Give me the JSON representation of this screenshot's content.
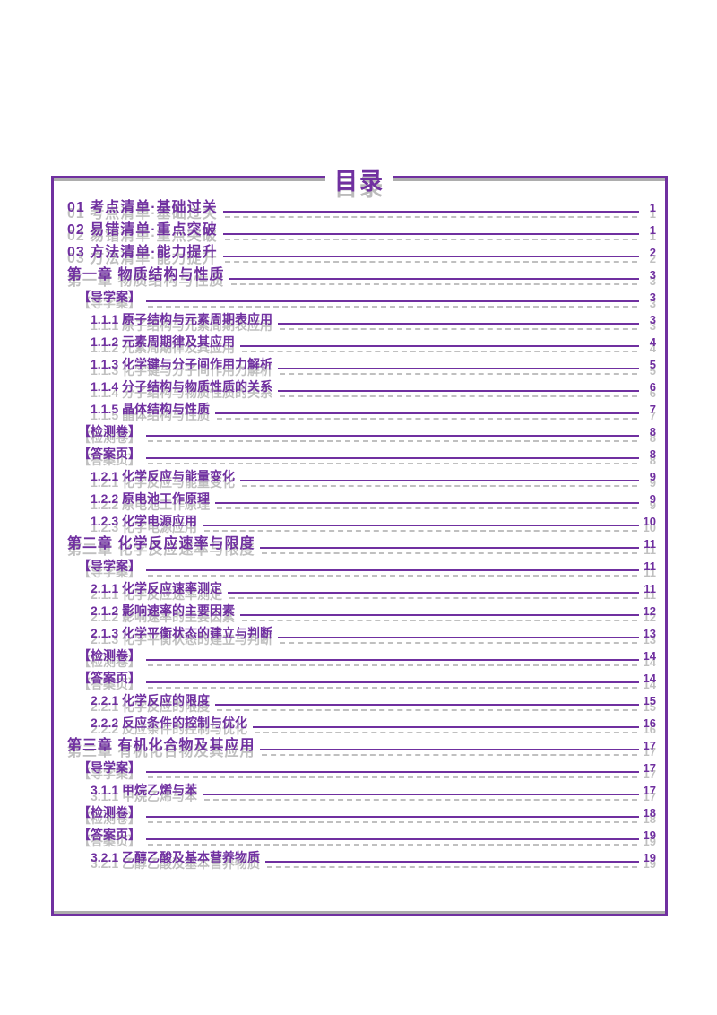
{
  "page_title": "目录",
  "accent_color": "#7030A0",
  "ghost_color": "rgba(105,105,105,0.45)",
  "entries": [
    {
      "level": 0,
      "text": "01 考点清单·基础过关",
      "page": "1"
    },
    {
      "level": 0,
      "text": "02 易错清单·重点突破",
      "page": "1"
    },
    {
      "level": 0,
      "text": "03 方法清单·能力提升",
      "page": "2"
    },
    {
      "level": 0,
      "text": "第一章 物质结构与性质",
      "page": "3"
    },
    {
      "level": 1,
      "text": "【导学案】",
      "page": "3"
    },
    {
      "level": 2,
      "text": "1.1.1 原子结构与元素周期表应用",
      "page": "3"
    },
    {
      "level": 2,
      "text": "1.1.2 元素周期律及其应用",
      "page": "4"
    },
    {
      "level": 2,
      "text": "1.1.3 化学键与分子间作用力解析",
      "page": "5"
    },
    {
      "level": 2,
      "text": "1.1.4 分子结构与物质性质的关系",
      "page": "6"
    },
    {
      "level": 2,
      "text": "1.1.5 晶体结构与性质",
      "page": "7"
    },
    {
      "level": 1,
      "text": "【检测卷】",
      "page": "8"
    },
    {
      "level": 1,
      "text": "【答案页】",
      "page": "8"
    },
    {
      "level": 2,
      "text": "1.2.1 化学反应与能量变化",
      "page": "9"
    },
    {
      "level": 2,
      "text": "1.2.2 原电池工作原理",
      "page": "9"
    },
    {
      "level": 2,
      "text": "1.2.3 化学电源应用",
      "page": "10"
    },
    {
      "level": 0,
      "text": "第二章 化学反应速率与限度",
      "page": "11"
    },
    {
      "level": 1,
      "text": "【导学案】",
      "page": "11"
    },
    {
      "level": 2,
      "text": "2.1.1 化学反应速率测定",
      "page": "11"
    },
    {
      "level": 2,
      "text": "2.1.2 影响速率的主要因素",
      "page": "12"
    },
    {
      "level": 2,
      "text": "2.1.3 化学平衡状态的建立与判断",
      "page": "13"
    },
    {
      "level": 1,
      "text": "【检测卷】",
      "page": "14"
    },
    {
      "level": 1,
      "text": "【答案页】",
      "page": "14"
    },
    {
      "level": 2,
      "text": "2.2.1 化学反应的限度",
      "page": "15"
    },
    {
      "level": 2,
      "text": "2.2.2 反应条件的控制与优化",
      "page": "16"
    },
    {
      "level": 0,
      "text": "第三章 有机化合物及其应用",
      "page": "17"
    },
    {
      "level": 1,
      "text": "【导学案】",
      "page": "17"
    },
    {
      "level": 2,
      "text": "3.1.1 甲烷乙烯与苯",
      "page": "17"
    },
    {
      "level": 1,
      "text": "【检测卷】",
      "page": "18"
    },
    {
      "level": 1,
      "text": "【答案页】",
      "page": "19"
    },
    {
      "level": 2,
      "text": "3.2.1 乙醇乙酸及基本营养物质",
      "page": "19"
    }
  ]
}
